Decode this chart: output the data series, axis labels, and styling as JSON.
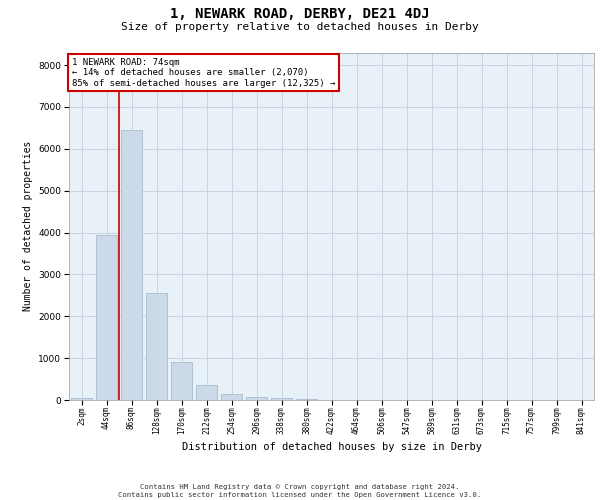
{
  "title": "1, NEWARK ROAD, DERBY, DE21 4DJ",
  "subtitle": "Size of property relative to detached houses in Derby",
  "xlabel": "Distribution of detached houses by size in Derby",
  "ylabel": "Number of detached properties",
  "categories": [
    "2sqm",
    "44sqm",
    "86sqm",
    "128sqm",
    "170sqm",
    "212sqm",
    "254sqm",
    "296sqm",
    "338sqm",
    "380sqm",
    "422sqm",
    "464sqm",
    "506sqm",
    "547sqm",
    "589sqm",
    "631sqm",
    "673sqm",
    "715sqm",
    "757sqm",
    "799sqm",
    "841sqm"
  ],
  "values": [
    50,
    3950,
    6450,
    2550,
    900,
    370,
    155,
    75,
    40,
    20,
    10,
    5,
    2,
    1,
    0,
    0,
    0,
    0,
    0,
    0,
    0
  ],
  "bar_color": "#ccd9e8",
  "bar_edge_color": "#aabcce",
  "vline_color": "#cc0000",
  "vline_x": 1.5,
  "annotation_text": "1 NEWARK ROAD: 74sqm\n← 14% of detached houses are smaller (2,070)\n85% of semi-detached houses are larger (12,325) →",
  "annotation_box_edge_color": "#cc0000",
  "annotation_box_face_color": "#ffffff",
  "grid_color": "#c8d4e0",
  "background_color": "#e8f0f8",
  "ylim": [
    0,
    8300
  ],
  "yticks": [
    0,
    1000,
    2000,
    3000,
    4000,
    5000,
    6000,
    7000,
    8000
  ],
  "footer_line1": "Contains HM Land Registry data © Crown copyright and database right 2024.",
  "footer_line2": "Contains public sector information licensed under the Open Government Licence v3.0."
}
